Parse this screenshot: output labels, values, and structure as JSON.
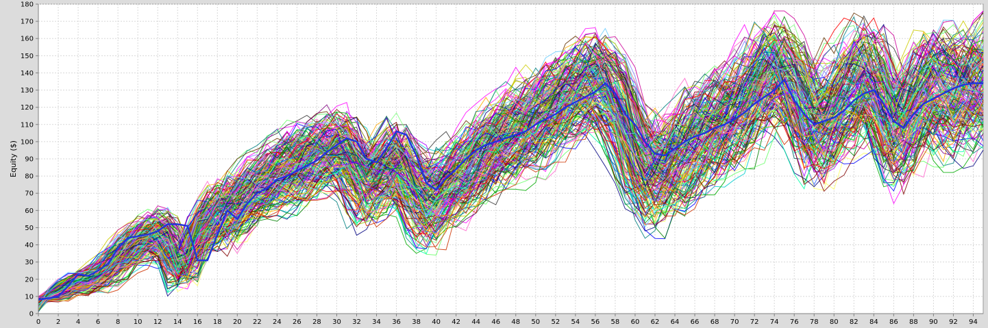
{
  "chart_data": {
    "type": "line",
    "title": "",
    "xlabel": "",
    "ylabel": "Equity ($)",
    "xlim": [
      0,
      95
    ],
    "ylim": [
      0,
      180
    ],
    "x_ticks": [
      0,
      2,
      4,
      6,
      8,
      10,
      12,
      14,
      16,
      18,
      20,
      22,
      24,
      26,
      28,
      30,
      32,
      34,
      36,
      38,
      40,
      42,
      44,
      46,
      48,
      50,
      52,
      54,
      56,
      58,
      60,
      62,
      64,
      66,
      68,
      70,
      72,
      74,
      76,
      78,
      80,
      82,
      84,
      86,
      88,
      90,
      92,
      94
    ],
    "y_ticks": [
      0,
      10,
      20,
      30,
      40,
      50,
      60,
      70,
      80,
      90,
      100,
      110,
      120,
      130,
      140,
      150,
      160,
      170,
      180
    ],
    "grid": true,
    "series_count_estimate": 200,
    "palette": [
      "#ff0000",
      "#00aa00",
      "#0000ff",
      "#ff00ff",
      "#00cccc",
      "#cccc00",
      "#800000",
      "#008000",
      "#000080",
      "#808000",
      "#800080",
      "#008080",
      "#ff8080",
      "#80ff80",
      "#8080ff",
      "#ffaa00",
      "#aa00ff",
      "#00ffaa",
      "#ff66cc",
      "#66ccff",
      "#999999",
      "#333333",
      "#ffff66",
      "#66ff66",
      "#cc3300",
      "#3366ff",
      "#99cc00",
      "#cc0099",
      "#006666",
      "#663300"
    ],
    "highlight_series_color": "#2233dd",
    "envelope": {
      "x": [
        0,
        1,
        2,
        3,
        4,
        5,
        6,
        7,
        8,
        9,
        10,
        11,
        12,
        13,
        14,
        15,
        16,
        17,
        18,
        19,
        20,
        21,
        22,
        23,
        24,
        25,
        26,
        27,
        28,
        29,
        30,
        31,
        32,
        33,
        34,
        35,
        36,
        37,
        38,
        39,
        40,
        41,
        42,
        43,
        44,
        45,
        46,
        47,
        48,
        49,
        50,
        51,
        52,
        53,
        54,
        55,
        56,
        57,
        58,
        59,
        60,
        61,
        62,
        63,
        64,
        65,
        66,
        67,
        68,
        69,
        70,
        71,
        72,
        73,
        74,
        75,
        76,
        77,
        78,
        79,
        80,
        81,
        82,
        83,
        84,
        85,
        86,
        87,
        88,
        89,
        90,
        91,
        92,
        93,
        94,
        95
      ],
      "center": [
        9,
        10,
        12,
        16,
        18,
        20,
        22,
        26,
        32,
        37,
        40,
        44,
        46,
        42,
        28,
        30,
        45,
        52,
        58,
        55,
        63,
        68,
        72,
        76,
        79,
        82,
        85,
        88,
        91,
        93,
        96,
        92,
        82,
        74,
        78,
        84,
        88,
        80,
        70,
        64,
        66,
        72,
        77,
        82,
        88,
        92,
        95,
        99,
        103,
        108,
        112,
        116,
        120,
        124,
        128,
        132,
        135,
        130,
        122,
        110,
        92,
        82,
        80,
        85,
        90,
        96,
        100,
        105,
        108,
        112,
        116,
        122,
        128,
        134,
        140,
        138,
        130,
        118,
        108,
        112,
        118,
        124,
        130,
        134,
        132,
        120,
        108,
        112,
        120,
        126,
        130,
        128,
        124,
        128,
        131,
        133
      ],
      "spread": [
        1,
        2,
        3,
        4,
        5,
        6,
        7,
        8,
        9,
        10,
        10,
        10,
        11,
        11,
        10,
        10,
        12,
        13,
        13,
        14,
        14,
        15,
        15,
        16,
        16,
        17,
        17,
        17,
        17,
        17,
        17,
        18,
        18,
        18,
        18,
        18,
        18,
        19,
        19,
        19,
        19,
        19,
        19,
        20,
        20,
        20,
        20,
        21,
        21,
        21,
        21,
        22,
        22,
        22,
        22,
        22,
        22,
        22,
        22,
        23,
        23,
        23,
        23,
        23,
        23,
        24,
        24,
        24,
        24,
        24,
        24,
        24,
        24,
        24,
        25,
        25,
        25,
        25,
        25,
        25,
        25,
        25,
        26,
        26,
        26,
        26,
        26,
        26,
        26,
        26,
        27,
        27,
        27,
        27,
        27,
        27
      ]
    },
    "highlight_series": {
      "name": "",
      "x": [
        0,
        1,
        2,
        3,
        4,
        5,
        6,
        7,
        8,
        9,
        10,
        11,
        12,
        13,
        14,
        15,
        16,
        17,
        18,
        19,
        20,
        21,
        22,
        23,
        24,
        25,
        26,
        27,
        28,
        29,
        30,
        31,
        32,
        33,
        34,
        35,
        36,
        37,
        38,
        39,
        40,
        41,
        42,
        43,
        44,
        45,
        46,
        47,
        48,
        49,
        50,
        51,
        52,
        53,
        54,
        55,
        56,
        57,
        58,
        59,
        60,
        61,
        62,
        63,
        64,
        65,
        66,
        67,
        68,
        69,
        70,
        71,
        72,
        73,
        74,
        75,
        76,
        77,
        78,
        79,
        80,
        81,
        82,
        83,
        84,
        85,
        86,
        87,
        88,
        89,
        90,
        91,
        92,
        93,
        94,
        95
      ],
      "values": [
        8,
        9,
        10,
        16,
        23,
        22,
        25,
        29,
        38,
        44,
        45,
        46,
        48,
        52,
        52,
        51,
        31,
        31,
        46,
        60,
        55,
        64,
        70,
        73,
        78,
        80,
        83,
        86,
        89,
        94,
        98,
        102,
        100,
        90,
        88,
        96,
        106,
        104,
        92,
        76,
        72,
        79,
        84,
        90,
        95,
        98,
        100,
        102,
        104,
        106,
        110,
        113,
        116,
        120,
        123,
        126,
        129,
        134,
        128,
        116,
        110,
        100,
        93,
        92,
        96,
        100,
        103,
        105,
        108,
        110,
        113,
        117,
        122,
        126,
        130,
        136,
        124,
        116,
        110,
        112,
        114,
        118,
        124,
        128,
        130,
        122,
        112,
        108,
        116,
        122,
        125,
        128,
        131,
        133,
        134,
        134
      ]
    }
  }
}
